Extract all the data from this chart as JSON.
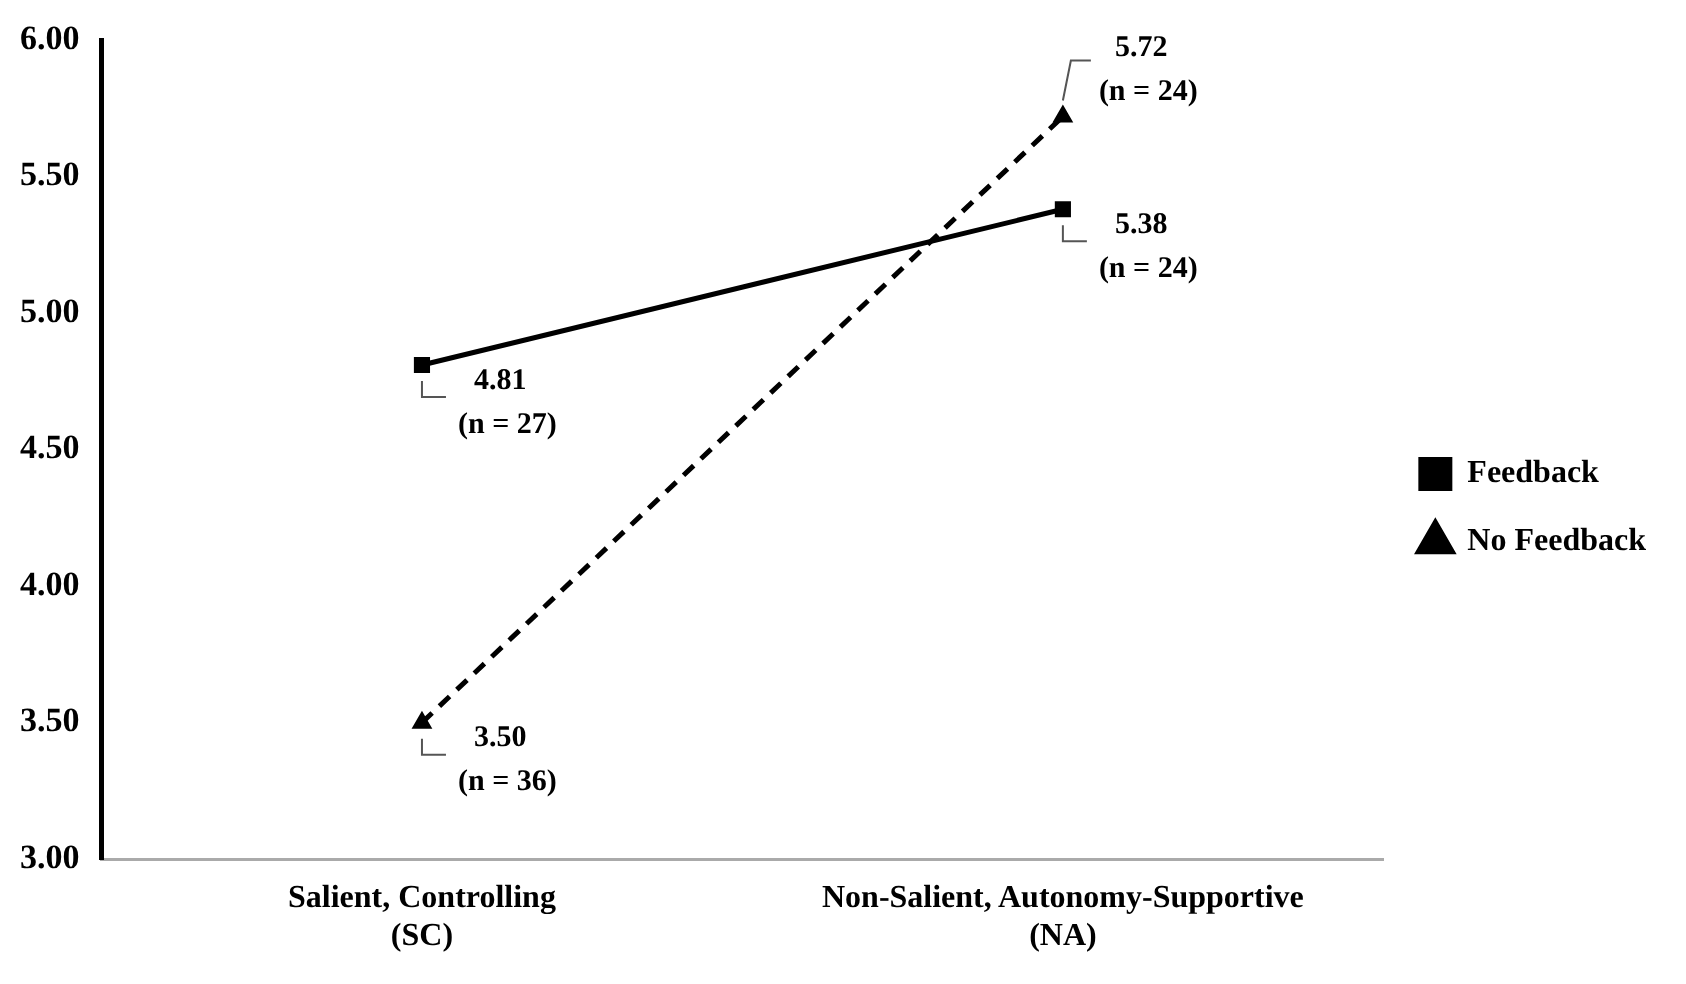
{
  "chart_data": {
    "type": "line",
    "categories": [
      "Salient, Controlling (SC)",
      "Non-Salient, Autonomy-Supportive (NA)"
    ],
    "series": [
      {
        "name": "Feedback",
        "color": "#000000",
        "marker": "square",
        "line_style": "solid",
        "values": [
          4.81,
          5.38
        ],
        "value_labels": [
          "4.81 (n = 27)",
          "5.38 (n = 24)"
        ]
      },
      {
        "name": "No Feedback",
        "color": "#000000",
        "marker": "triangle",
        "line_style": "dashed",
        "values": [
          3.5,
          5.72
        ],
        "value_labels": [
          "3.50 (n = 36)",
          "5.72 (n = 24)"
        ]
      }
    ],
    "ylim": [
      3,
      6
    ],
    "yticks": [
      {
        "value": 3,
        "label": "3.00"
      },
      {
        "value": 3.5,
        "label": "3.50"
      },
      {
        "value": 4,
        "label": "4.00"
      },
      {
        "value": 4.5,
        "label": "4.50"
      },
      {
        "value": 5,
        "label": "5.00"
      },
      {
        "value": 5.5,
        "label": "5.50"
      },
      {
        "value": 6,
        "label": "6.00"
      }
    ],
    "grid": false,
    "legend": "right"
  }
}
